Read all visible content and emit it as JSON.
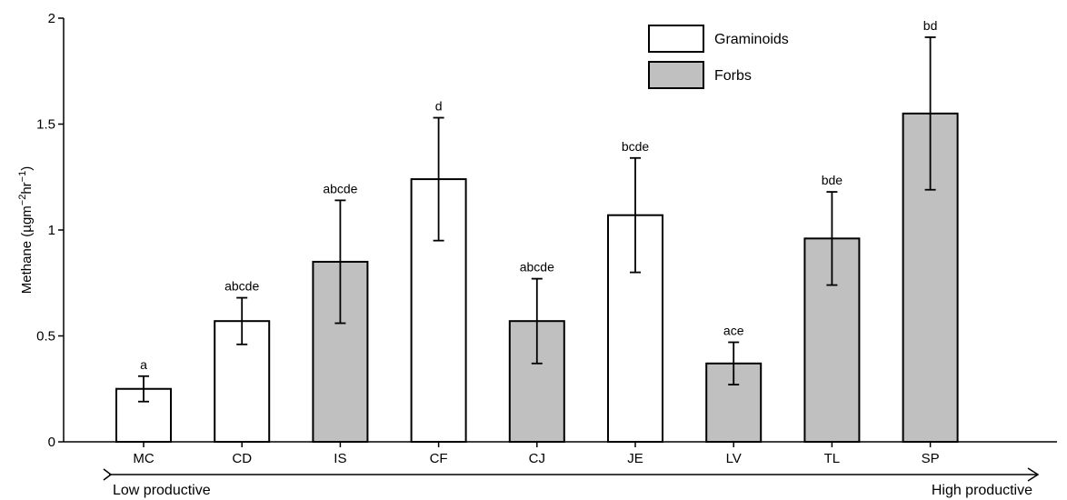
{
  "chart_data": {
    "type": "bar",
    "title": "",
    "xlabel": "",
    "ylabel": "Methane (µgm",
    "ylabel_sup1": "−2",
    "ylabel_mid": "hr",
    "ylabel_sup2": "−1",
    "ylabel_end": ")",
    "ylim": [
      0,
      2
    ],
    "yticks": [
      {
        "value": 0,
        "label": "0"
      },
      {
        "value": 0.5,
        "label": "0.5"
      },
      {
        "value": 1,
        "label": "1"
      },
      {
        "value": 1.5,
        "label": "1.5"
      },
      {
        "value": 2,
        "label": "2"
      }
    ],
    "categories": [
      "MC",
      "CD",
      "IS",
      "CF",
      "CJ",
      "JE",
      "LV",
      "TL",
      "SP"
    ],
    "values": [
      0.25,
      0.57,
      0.85,
      1.24,
      0.57,
      1.07,
      0.37,
      0.96,
      1.55
    ],
    "error_low": [
      0.19,
      0.46,
      0.56,
      0.95,
      0.37,
      0.8,
      0.27,
      0.74,
      1.19
    ],
    "error_high": [
      0.31,
      0.68,
      1.14,
      1.53,
      0.77,
      1.34,
      0.47,
      1.18,
      1.91
    ],
    "groups": [
      "Graminoids",
      "Graminoids",
      "Forbs",
      "Graminoids",
      "Forbs",
      "Graminoids",
      "Forbs",
      "Forbs",
      "Forbs"
    ],
    "significance_labels": [
      "a",
      "abcde",
      "abcde",
      "d",
      "abcde",
      "bcde",
      "ace",
      "bde",
      "bd"
    ],
    "legend": {
      "placement": "top-right",
      "entries": [
        {
          "name": "Graminoids",
          "color": "#ffffff"
        },
        {
          "name": "Forbs",
          "color": "#c0c0c0"
        }
      ]
    },
    "gradient_arrow": {
      "start_label": "Low productive",
      "end_label": "High productive"
    },
    "grid": false
  }
}
